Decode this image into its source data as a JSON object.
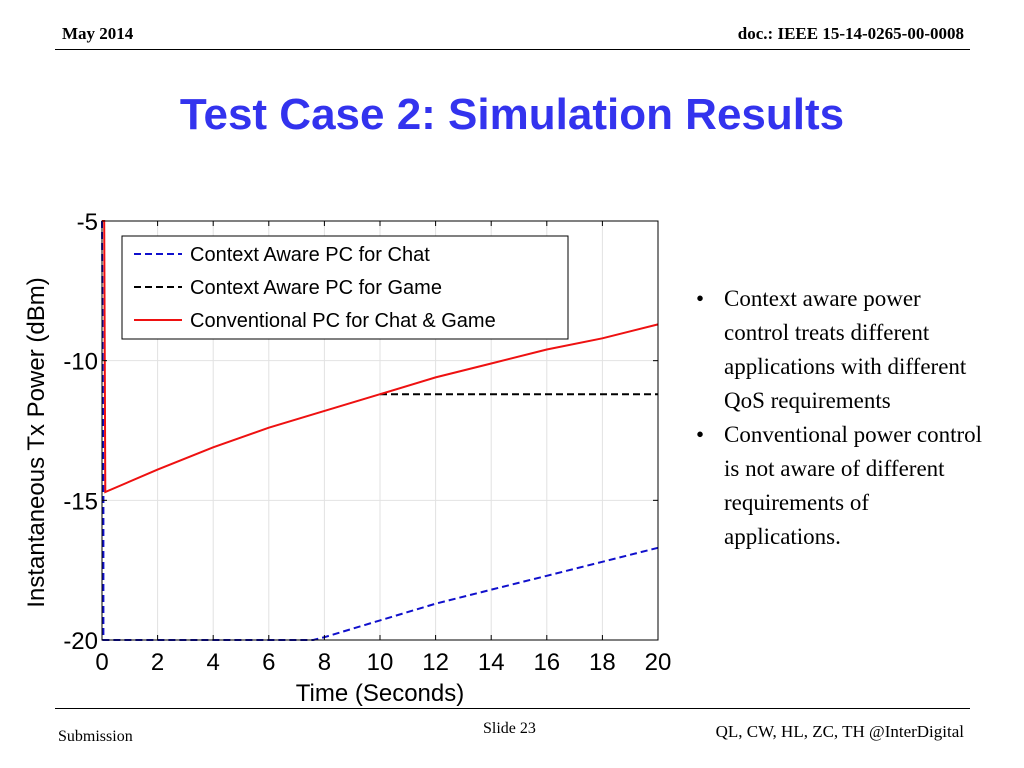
{
  "header": {
    "date": "May 2014",
    "doc": "doc.: IEEE 15-14-0265-00-0008"
  },
  "slide_title": "Test Case 2: Simulation Results",
  "bullets": [
    "Context aware power control treats different applications with different QoS requirements",
    "Conventional power control is not aware of different requirements of applications."
  ],
  "footer": {
    "left": "Submission",
    "center": "Slide 23",
    "right": "QL, CW, HL, ZC, TH @InterDigital"
  },
  "colors": {
    "title": "#3333ee",
    "chat": "#1010cc",
    "game": "#000000",
    "conventional": "#ee1111"
  },
  "chart_data": {
    "type": "line",
    "title": "",
    "xlabel": "Time (Seconds)",
    "ylabel": "Instantaneous Tx Power (dBm)",
    "xlim": [
      0,
      20
    ],
    "ylim": [
      -20,
      -5
    ],
    "xticks": [
      0,
      2,
      4,
      6,
      8,
      10,
      12,
      14,
      16,
      18,
      20
    ],
    "yticks": [
      -5,
      -10,
      -15,
      -20
    ],
    "grid": true,
    "legend_position": "top-left",
    "series": [
      {
        "name": "Context Aware PC for Chat",
        "style": "dashed",
        "color": "#1010cc",
        "x": [
          0,
          0.05,
          0.05,
          7.6,
          8,
          10,
          12,
          14,
          16,
          18,
          20
        ],
        "y": [
          -5,
          -14.6,
          -20,
          -20,
          -19.9,
          -19.3,
          -18.7,
          -18.2,
          -17.7,
          -17.2,
          -16.7
        ]
      },
      {
        "name": "Context Aware PC for Game",
        "style": "dashed",
        "color": "#000000",
        "x": [
          10,
          20
        ],
        "y": [
          -11.2,
          -11.2
        ]
      },
      {
        "name": "Conventional PC for Chat & Game",
        "style": "solid",
        "color": "#ee1111",
        "x": [
          0,
          0.08,
          0.12,
          2,
          4,
          6,
          8,
          10,
          12,
          14,
          16,
          18,
          20
        ],
        "y": [
          -5,
          -5,
          -14.7,
          -13.9,
          -13.1,
          -12.4,
          -11.8,
          -11.2,
          -10.6,
          -10.1,
          -9.6,
          -9.2,
          -8.7
        ]
      }
    ]
  }
}
